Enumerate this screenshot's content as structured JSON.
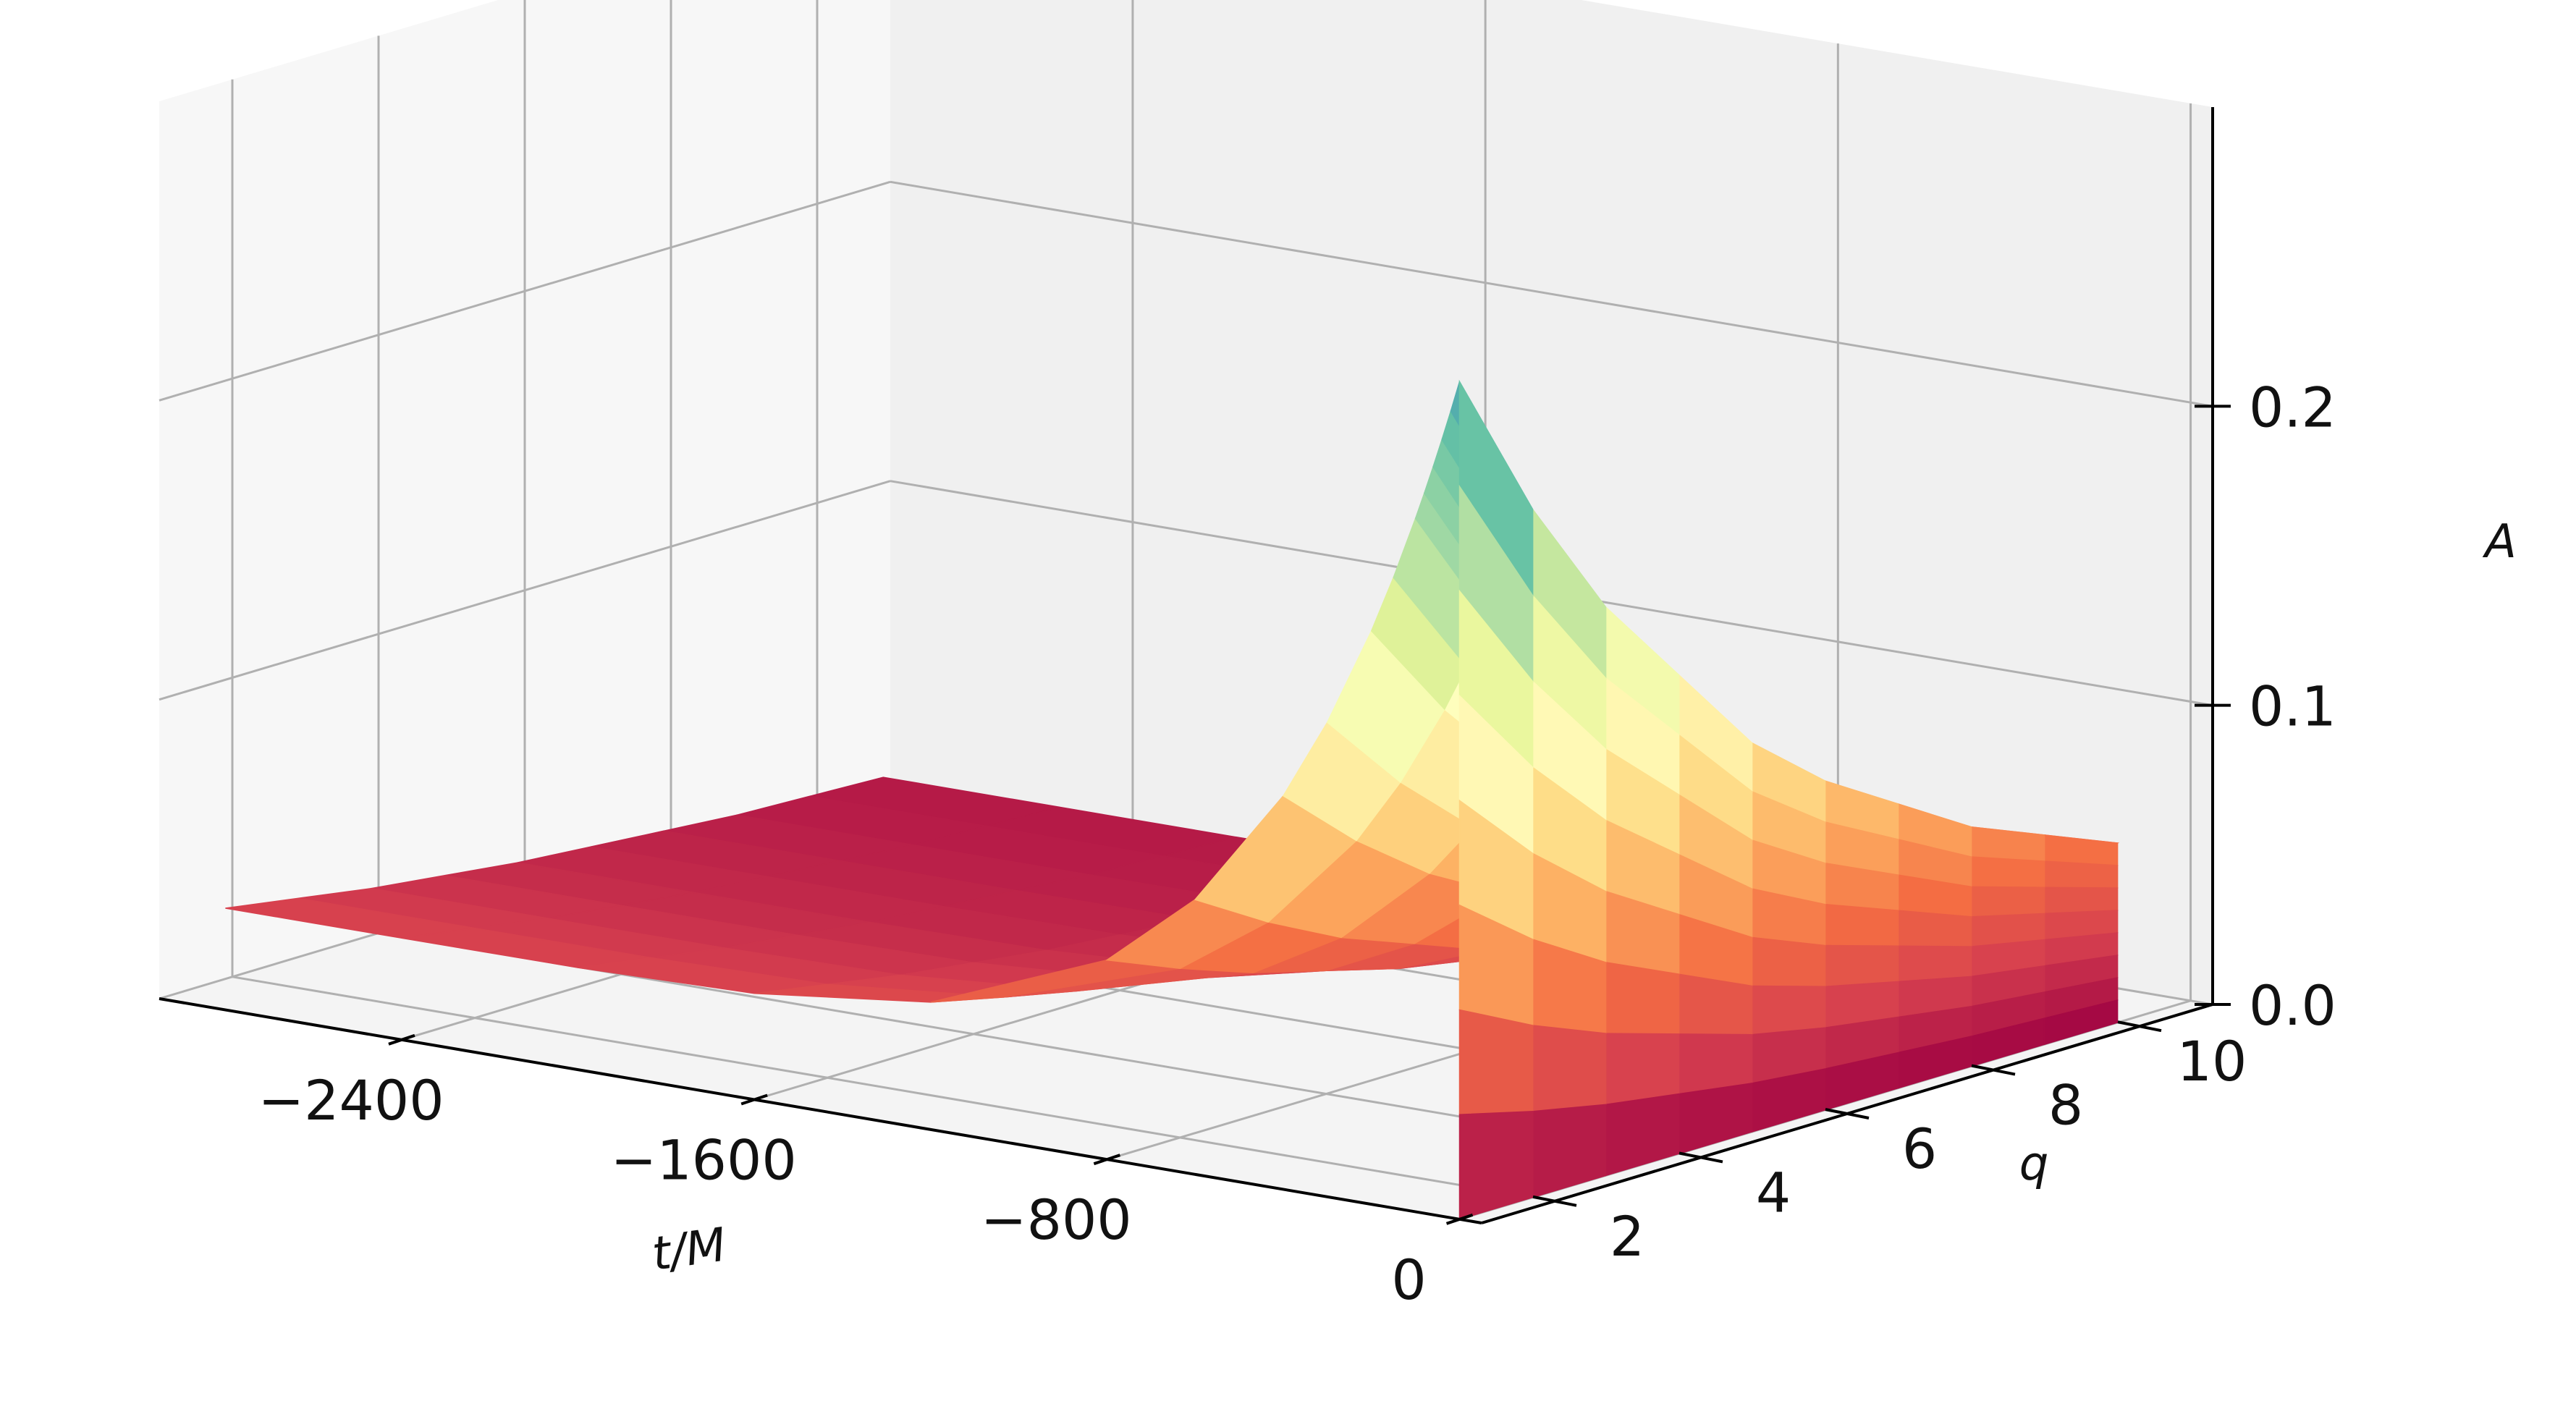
{
  "chart_data": {
    "type": "surface",
    "title": "",
    "xlabel": "t/M",
    "ylabel": "q",
    "zlabel": "A",
    "xlim": [
      -2950,
      50
    ],
    "ylim": [
      1,
      11
    ],
    "zlim": [
      0,
      0.3
    ],
    "x_ticks": [
      {
        "value": -2400,
        "label": "−2400"
      },
      {
        "value": -1600,
        "label": "−1600"
      },
      {
        "value": -800,
        "label": "−800"
      },
      {
        "value": 0,
        "label": "0"
      }
    ],
    "y_ticks": [
      {
        "value": 2,
        "label": "2"
      },
      {
        "value": 4,
        "label": "4"
      },
      {
        "value": 6,
        "label": "6"
      },
      {
        "value": 8,
        "label": "8"
      },
      {
        "value": 10,
        "label": "10"
      }
    ],
    "z_ticks": [
      {
        "value": 0.0,
        "label": "0.0"
      },
      {
        "value": 0.1,
        "label": "0.1"
      },
      {
        "value": 0.2,
        "label": "0.2"
      }
    ],
    "grid": true,
    "colormap": "Spectral",
    "colormap_stops": [
      "#9e0142",
      "#d53e4f",
      "#f46d43",
      "#fdae61",
      "#fee08b",
      "#ffffbf",
      "#e6f598",
      "#abdda4",
      "#66c2a5",
      "#3288bd",
      "#5e4fa2"
    ],
    "t_samples": [
      -2800,
      -2400,
      -2000,
      -1600,
      -1200,
      -800,
      -600,
      -400,
      -300,
      -200,
      -150,
      -100,
      -80,
      -60,
      -40,
      -20,
      0
    ],
    "q_samples": [
      1,
      2,
      3,
      4,
      5,
      6,
      7,
      8,
      9,
      10
    ],
    "amplitude_at_merger": [
      0.28,
      0.23,
      0.19,
      0.16,
      0.13,
      0.11,
      0.095,
      0.08,
      0.07,
      0.06
    ],
    "amplitude_at_start": [
      0.034,
      0.03,
      0.026,
      0.023,
      0.02,
      0.018,
      0.016,
      0.014,
      0.013,
      0.012
    ]
  }
}
